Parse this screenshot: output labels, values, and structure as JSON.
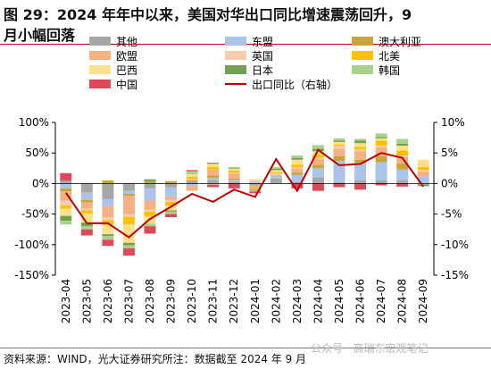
{
  "header": {
    "title_line1": "图 29：2024 年年中以来，美国对华出口同比增速震荡回升，9",
    "title_line2": "月小幅回落"
  },
  "footer": {
    "source": "资料来源：WIND，光大证券研究所注：数据截至 2024 年 9 月",
    "watermark": "公众号 · 高瑞东宏观笔记"
  },
  "colors": {
    "other": "#a6a6a6",
    "asean": "#a9c4e8",
    "australia": "#c8a53c",
    "eu": "#f4b183",
    "uk": "#f8cbad",
    "north_america": "#ffc000",
    "brazil": "#ffe08a",
    "japan": "#70a050",
    "korea": "#a9d18e",
    "china": "#e0485a",
    "line": "#c00000"
  },
  "chart_data": {
    "type": "bar",
    "categories": [
      "2023-04",
      "2023-05",
      "2023-06",
      "2023-07",
      "2023-08",
      "2023-09",
      "2023-10",
      "2023-11",
      "2023-12",
      "2024-01",
      "2024-02",
      "2024-03",
      "2024-04",
      "2024-05",
      "2024-06",
      "2024-07",
      "2024-08",
      "2024-09"
    ],
    "stacked": true,
    "left_axis": {
      "ylim": [
        -150,
        100
      ],
      "ticks": [
        -150,
        -100,
        -50,
        0,
        50,
        100
      ],
      "tick_labels": [
        "-150%",
        "-100%",
        "-50%",
        "0%",
        "50%",
        "100%"
      ]
    },
    "right_axis": {
      "ylim": [
        -15,
        10
      ],
      "ticks": [
        -15,
        -10,
        -5,
        0,
        5,
        10
      ],
      "tick_labels": [
        "-15%",
        "-10%",
        "-5%",
        "0%",
        "5%",
        "10%"
      ]
    },
    "series": [
      {
        "name": "其他",
        "key": "other",
        "values": [
          5,
          -15,
          -25,
          -12,
          -8,
          -6,
          4,
          6,
          3,
          -3,
          8,
          2,
          10,
          2,
          5,
          5,
          5,
          -2
        ]
      },
      {
        "name": "东盟",
        "key": "asean",
        "values": [
          -8,
          -12,
          -12,
          -5,
          -20,
          -15,
          -4,
          3,
          3,
          3,
          4,
          12,
          15,
          35,
          28,
          30,
          18,
          12
        ]
      },
      {
        "name": "澳大利亚",
        "key": "australia",
        "values": [
          -5,
          -4,
          5,
          -3,
          4,
          4,
          2,
          4,
          2,
          0,
          0,
          4,
          6,
          8,
          6,
          10,
          10,
          0
        ]
      },
      {
        "name": "欧盟",
        "key": "eu",
        "values": [
          -15,
          -10,
          -18,
          -30,
          -15,
          -6,
          -8,
          10,
          8,
          -5,
          2,
          6,
          9,
          12,
          14,
          14,
          10,
          8
        ]
      },
      {
        "name": "英国",
        "key": "uk",
        "values": [
          -8,
          -3,
          -5,
          -5,
          -3,
          -3,
          2,
          0,
          2,
          2,
          2,
          2,
          2,
          5,
          3,
          3,
          3,
          2
        ]
      },
      {
        "name": "北美",
        "key": "north_america",
        "values": [
          -5,
          -5,
          -8,
          -12,
          -8,
          -6,
          3,
          4,
          3,
          -2,
          2,
          5,
          5,
          2,
          4,
          8,
          8,
          5
        ]
      },
      {
        "name": "巴西",
        "key": "brazil",
        "values": [
          -12,
          -15,
          -15,
          -30,
          -12,
          -8,
          5,
          5,
          3,
          2,
          4,
          8,
          6,
          4,
          6,
          4,
          8,
          12
        ]
      },
      {
        "name": "日本",
        "key": "japan",
        "values": [
          -8,
          -6,
          -3,
          -4,
          3,
          -2,
          1,
          2,
          1,
          -1,
          2,
          3,
          4,
          2,
          4,
          2,
          3,
          -2
        ]
      },
      {
        "name": "韩国",
        "key": "korea",
        "values": [
          -6,
          -5,
          -6,
          -5,
          -4,
          -4,
          3,
          -2,
          2,
          -2,
          3,
          4,
          6,
          4,
          3,
          6,
          8,
          -1
        ]
      },
      {
        "name": "中国",
        "key": "china",
        "values": [
          12,
          -10,
          -10,
          -12,
          -12,
          -5,
          2,
          -4,
          -8,
          -3,
          0,
          -8,
          -12,
          -6,
          -10,
          -3,
          -5,
          0
        ]
      }
    ],
    "line_series": {
      "name": "出口同比（右轴）",
      "key": "line",
      "axis": "right",
      "values": [
        -1.5,
        -6.5,
        -6.5,
        -8.8,
        -5.8,
        -3.8,
        -1.7,
        -3.0,
        -1.0,
        -2.2,
        4.0,
        -1.2,
        5.5,
        3.0,
        3.2,
        5.0,
        4.2,
        -0.5
      ]
    },
    "legend": {
      "placement": "top",
      "items": [
        {
          "label": "其他",
          "key": "other",
          "kind": "box"
        },
        {
          "label": "东盟",
          "key": "asean",
          "kind": "box"
        },
        {
          "label": "澳大利亚",
          "key": "australia",
          "kind": "box"
        },
        {
          "label": "欧盟",
          "key": "eu",
          "kind": "box"
        },
        {
          "label": "英国",
          "key": "uk",
          "kind": "box"
        },
        {
          "label": "北美",
          "key": "north_america",
          "kind": "box"
        },
        {
          "label": "巴西",
          "key": "brazil",
          "kind": "box"
        },
        {
          "label": "日本",
          "key": "japan",
          "kind": "box"
        },
        {
          "label": "韩国",
          "key": "korea",
          "kind": "box"
        },
        {
          "label": "中国",
          "key": "china",
          "kind": "box"
        },
        {
          "label": "出口同比（右轴）",
          "key": "line",
          "kind": "line"
        }
      ]
    },
    "grid": false
  }
}
